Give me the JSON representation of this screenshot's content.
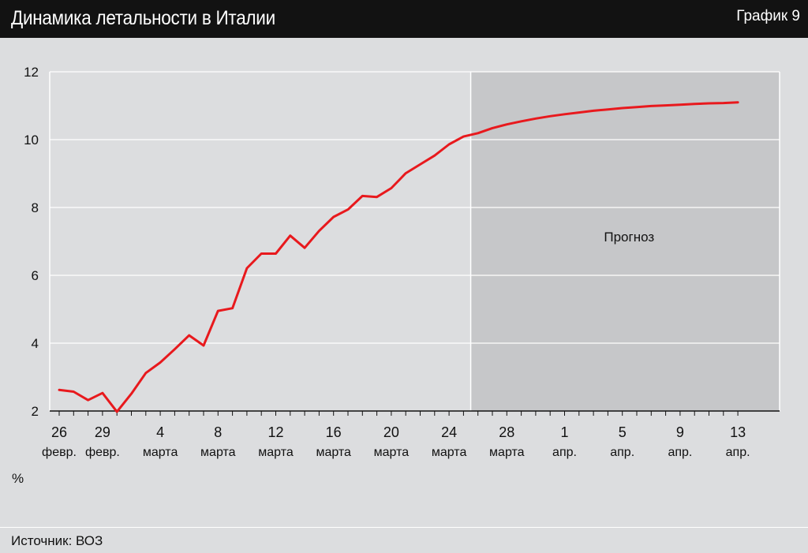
{
  "header": {
    "title": "Динамика летальности в Италии",
    "tag": "График 9"
  },
  "footer": {
    "source": "Источник: ВОЗ"
  },
  "chart_data": {
    "type": "line",
    "title": "Динамика летальности в Италии",
    "ylabel": "%",
    "xlabel": "",
    "ylim": [
      2,
      12
    ],
    "yticks": [
      2,
      4,
      6,
      8,
      10,
      12
    ],
    "grid": true,
    "x_start": "26 февр.",
    "x_end": "13 апр.",
    "num_days": 48,
    "x_tick_labels": [
      {
        "day": 0,
        "line1": "26",
        "line2": "февр."
      },
      {
        "day": 3,
        "line1": "29",
        "line2": "февр."
      },
      {
        "day": 7,
        "line1": "4",
        "line2": "марта"
      },
      {
        "day": 11,
        "line1": "8",
        "line2": "марта"
      },
      {
        "day": 15,
        "line1": "12",
        "line2": "марта"
      },
      {
        "day": 19,
        "line1": "16",
        "line2": "марта"
      },
      {
        "day": 23,
        "line1": "20",
        "line2": "марта"
      },
      {
        "day": 27,
        "line1": "24",
        "line2": "марта"
      },
      {
        "day": 31,
        "line1": "28",
        "line2": "марта"
      },
      {
        "day": 35,
        "line1": "1",
        "line2": "апр."
      },
      {
        "day": 39,
        "line1": "5",
        "line2": "апр."
      },
      {
        "day": 43,
        "line1": "9",
        "line2": "апр."
      },
      {
        "day": 47,
        "line1": "13",
        "line2": "апр."
      }
    ],
    "forecast": {
      "start_day": 29,
      "label": "Прогноз",
      "color": "#c6c7c9"
    },
    "series": [
      {
        "color": "#e8191d",
        "values": [
          2.62,
          2.57,
          2.32,
          2.53,
          1.98,
          2.51,
          3.12,
          3.43,
          3.82,
          4.23,
          3.93,
          4.95,
          5.03,
          6.21,
          6.64,
          6.64,
          7.17,
          6.81,
          7.31,
          7.72,
          7.94,
          8.34,
          8.31,
          8.57,
          9.01,
          9.27,
          9.53,
          9.86,
          10.09,
          10.19,
          10.34,
          10.45,
          10.54,
          10.62,
          10.69,
          10.75,
          10.8,
          10.85,
          10.89,
          10.93,
          10.96,
          10.99,
          11.01,
          11.03,
          11.05,
          11.07,
          11.08,
          11.1
        ]
      }
    ]
  }
}
